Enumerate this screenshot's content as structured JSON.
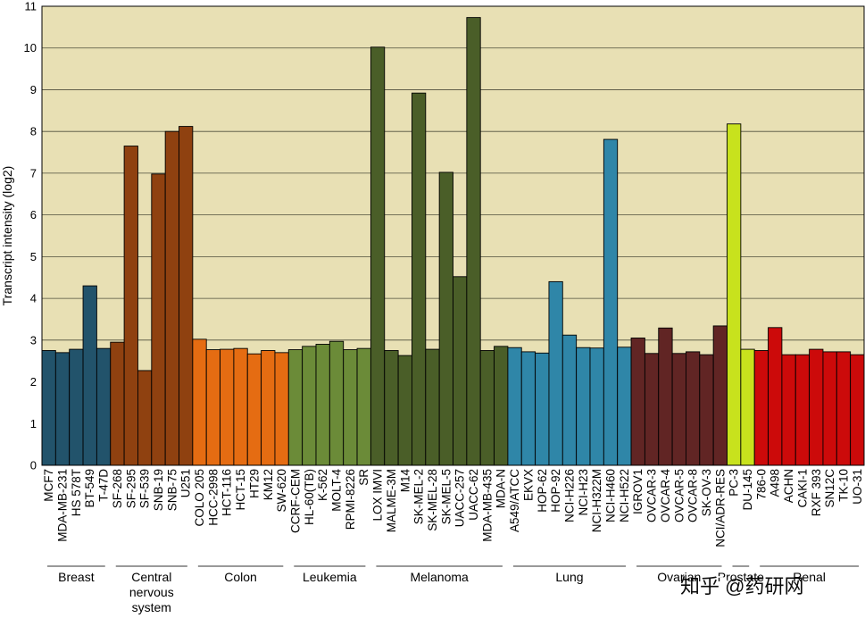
{
  "chart_data": {
    "type": "bar",
    "title": "",
    "xlabel": "",
    "ylabel": "Transcript intensity (log2)",
    "ylim": [
      0,
      11
    ],
    "yticks": [
      0,
      1,
      2,
      3,
      4,
      5,
      6,
      7,
      8,
      9,
      10,
      11
    ],
    "grid": true,
    "background_color": "#e8e0b4",
    "groups": [
      {
        "name": "Breast",
        "color": "#22536b",
        "categories": [
          "MCF7",
          "MDA-MB-231",
          "HS 578T",
          "BT-549",
          "T-47D"
        ],
        "values": [
          2.75,
          2.7,
          2.78,
          4.3,
          2.8
        ]
      },
      {
        "name": "Central nervous system",
        "color": "#8f4110",
        "categories": [
          "SF-268",
          "SF-295",
          "SF-539",
          "SNB-19",
          "SNB-75",
          "U251"
        ],
        "values": [
          2.95,
          7.65,
          2.27,
          6.98,
          8.0,
          8.12
        ]
      },
      {
        "name": "Colon",
        "color": "#e56c12",
        "categories": [
          "COLO 205",
          "HCC-2998",
          "HCT-116",
          "HCT-15",
          "HT29",
          "KM12",
          "SW-620"
        ],
        "values": [
          3.02,
          2.77,
          2.78,
          2.8,
          2.67,
          2.75,
          2.7
        ]
      },
      {
        "name": "Leukemia",
        "color": "#6b8b38",
        "categories": [
          "CCRF-CEM",
          "HL-60(TB)",
          "K-562",
          "MOLT-4",
          "RPMI-8226",
          "SR"
        ],
        "values": [
          2.77,
          2.85,
          2.9,
          2.97,
          2.77,
          2.8
        ]
      },
      {
        "name": "Melanoma",
        "color": "#4a5e28",
        "categories": [
          "LOX IMVI",
          "MALME-3M",
          "M14",
          "SK-MEL-2",
          "SK-MEL-28",
          "SK-MEL-5",
          "UACC-257",
          "UACC-62",
          "MDA-MB-435",
          "MDA-N"
        ],
        "values": [
          10.02,
          2.75,
          2.63,
          8.92,
          2.78,
          7.02,
          4.52,
          10.73,
          2.75,
          2.85
        ]
      },
      {
        "name": "Lung",
        "color": "#2f86a8",
        "categories": [
          "A549/ATCC",
          "EKVX",
          "HOP-62",
          "HOP-92",
          "NCI-H226",
          "NCI-H23",
          "NCI-H322M",
          "NCI-H460",
          "NCI-H522"
        ],
        "values": [
          2.82,
          2.72,
          2.69,
          4.4,
          3.12,
          2.82,
          2.81,
          7.81,
          2.83
        ]
      },
      {
        "name": "Ovarian",
        "color": "#612524",
        "categories": [
          "IGROV1",
          "OVCAR-3",
          "OVCAR-4",
          "OVCAR-5",
          "OVCAR-8",
          "SK-OV-3",
          "NCI/ADR-RES"
        ],
        "values": [
          3.05,
          2.68,
          3.29,
          2.68,
          2.72,
          2.65,
          3.34
        ]
      },
      {
        "name": "Prostate",
        "color": "#c8e21d",
        "categories": [
          "PC-3",
          "DU-145"
        ],
        "values": [
          8.18,
          2.78
        ]
      },
      {
        "name": "Renal",
        "color": "#cc0a0a",
        "categories": [
          "786-0",
          "A498",
          "ACHN",
          "CAKI-1",
          "RXF 393",
          "SN12C",
          "TK-10",
          "UO-31"
        ],
        "values": [
          2.75,
          3.3,
          2.65,
          2.65,
          2.78,
          2.72,
          2.72,
          2.65
        ]
      }
    ]
  },
  "group_label_lines": {
    "Breast": [
      "Breast"
    ],
    "Central nervous system": [
      "Central",
      "nervous",
      "system"
    ],
    "Colon": [
      "Colon"
    ],
    "Leukemia": [
      "Leukemia"
    ],
    "Melanoma": [
      "Melanoma"
    ],
    "Lung": [
      "Lung"
    ],
    "Ovarian": [
      "Ovarian"
    ],
    "Prostate": [
      "Prostate"
    ],
    "Renal": [
      "Renal"
    ]
  },
  "watermark": {
    "text": "知乎 @药研网"
  }
}
